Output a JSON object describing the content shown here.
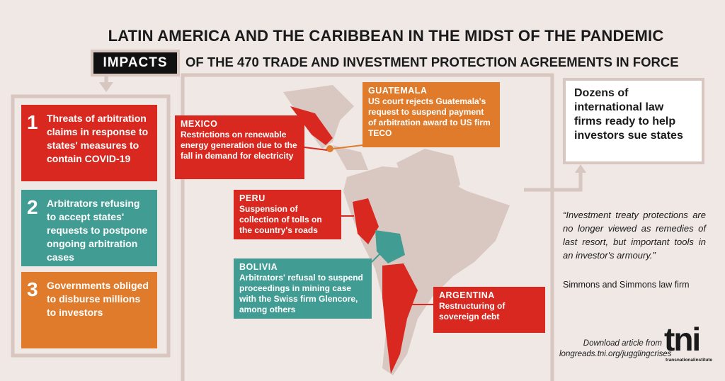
{
  "title": "LATIN AMERICA AND THE CARIBBEAN IN THE MIDST OF THE PANDEMIC",
  "subtitle": {
    "tag": "IMPACTS",
    "text": "OF THE 470 TRADE AND INVESTMENT PROTECTION AGREEMENTS IN FORCE"
  },
  "impacts": [
    {
      "number": 1,
      "text": "Threats of arbitration claims in response to states' measures to contain COVID-19"
    },
    {
      "number": 2,
      "text": "Arbitrators refusing to accept states' requests to postpone ongoing arbitration cases"
    },
    {
      "number": 3,
      "text": "Governments obliged to disburse millions to investors"
    }
  ],
  "cases": [
    {
      "country": "GUATEMALA",
      "text": "US court rejects Guatemala's request to suspend payment of arbitration award to US firm TECO"
    },
    {
      "country": "MEXICO",
      "text": "Restrictions on renewable energy generation due to the fall in demand for electricity"
    },
    {
      "country": "PERU",
      "text": "Suspension of collection of tolls on the country's roads"
    },
    {
      "country": "BOLIVIA",
      "text": "Arbitrators' refusal to suspend proceedings in mining case with the Swiss firm Glencore, among others"
    },
    {
      "country": "ARGENTINA",
      "text": "Restructuring of sovereign debt"
    }
  ],
  "side_box": "Dozens of international law firms ready to help investors sue states",
  "quote": {
    "text": "“Investment treaty protections are no longer viewed as remedies of last resort, but important tools in an investor's armoury.”",
    "source": "Simmons and Simmons law firm"
  },
  "footer": {
    "download": "Download article from",
    "url": "longreads.tni.org/jugglingcrises",
    "logo": "tni",
    "logo_sub": "transnationalinstitute"
  }
}
